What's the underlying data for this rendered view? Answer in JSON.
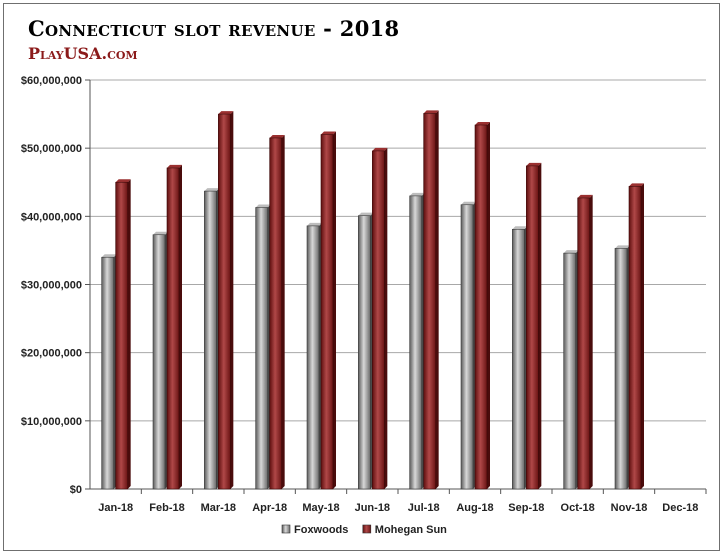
{
  "chart_data": {
    "type": "bar",
    "title": "Connecticut slot revenue - 2018",
    "subtitle": "PlayUSA.com",
    "categories": [
      "Jan-18",
      "Feb-18",
      "Mar-18",
      "Apr-18",
      "May-18",
      "Jun-18",
      "Jul-18",
      "Aug-18",
      "Sep-18",
      "Oct-18",
      "Nov-18",
      "Dec-18"
    ],
    "series": [
      {
        "name": "Foxwoods",
        "color": "#8c8c8c",
        "values": [
          34000000,
          37300000,
          43700000,
          41300000,
          38600000,
          40100000,
          43000000,
          41700000,
          38100000,
          34600000,
          35300000,
          null
        ]
      },
      {
        "name": "Mohegan Sun",
        "color": "#8b2020",
        "values": [
          45000000,
          47100000,
          55000000,
          51500000,
          52000000,
          49600000,
          55100000,
          53400000,
          47400000,
          42700000,
          44400000,
          null
        ]
      }
    ],
    "ylim": [
      0,
      60000000
    ],
    "yticks": [
      0,
      10000000,
      20000000,
      30000000,
      40000000,
      50000000,
      60000000
    ],
    "ytick_labels": [
      "$0",
      "$10,000,000",
      "$20,000,000",
      "$30,000,000",
      "$40,000,000",
      "$50,000,000",
      "$60,000,000"
    ],
    "grid": true,
    "legend_position": "bottom"
  }
}
